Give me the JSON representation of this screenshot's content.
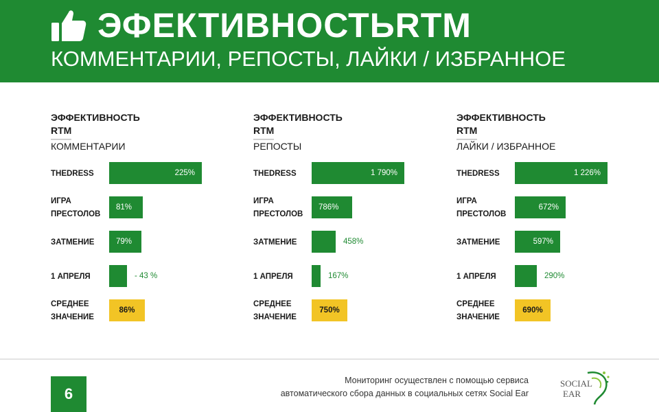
{
  "header": {
    "title": "ЭФЕКТИВНОСТЬRTM",
    "subtitle": "КОММЕНТАРИИ, РЕПОСТЫ, ЛАЙКИ / ИЗБРАННОЕ",
    "icon": "thumbs-up-icon",
    "bg_color": "#1f8a32"
  },
  "chart_data": [
    {
      "type": "bar",
      "orientation": "horizontal",
      "title": "ЭФФЕКТИВНОСТЬ RTM",
      "subtitle": "КОММЕНТАРИИ",
      "categories": [
        "THEDRESS",
        "ИГРА ПРЕСТОЛОВ",
        "ЗАТМЕНИЕ",
        "1 АПРЕЛЯ",
        "СРЕДНЕЕ ЗНАЧЕНИЕ"
      ],
      "values": [
        225,
        81,
        79,
        -43,
        86
      ],
      "labels": [
        "225%",
        "81%",
        "79%",
        "- 43 %",
        "86%"
      ]
    },
    {
      "type": "bar",
      "orientation": "horizontal",
      "title": "ЭФФЕКТИВНОСТЬ RTM",
      "subtitle": "РЕПОСТЫ",
      "categories": [
        "THEDRESS",
        "ИГРА ПРЕСТОЛОВ",
        "ЗАТМЕНИЕ",
        "1 АПРЕЛЯ",
        "СРЕДНЕЕ ЗНАЧЕНИЕ"
      ],
      "values": [
        1790,
        786,
        458,
        167,
        750
      ],
      "labels": [
        "1 790%",
        "786%",
        "458%",
        "167%",
        "750%"
      ]
    },
    {
      "type": "bar",
      "orientation": "horizontal",
      "title": "ЭФФЕКТИВНОСТЬ RTM",
      "subtitle": "ЛАЙКИ / ИЗБРАННОЕ",
      "categories": [
        "THEDRESS",
        "ИГРА ПРЕСТОЛОВ",
        "ЗАТМЕНИЕ",
        "1 АПРЕЛЯ",
        "СРЕДНЕЕ ЗНАЧЕНИЕ"
      ],
      "values": [
        1226,
        672,
        597,
        290,
        690
      ],
      "labels": [
        "1 226%",
        "672%",
        "597%",
        "290%",
        "690%"
      ]
    }
  ],
  "colors": {
    "bar": "#1f8a32",
    "average_bar": "#f2c425"
  },
  "footer": {
    "page_number": "6",
    "text_line1": "Мониторинг осуществлен с помощью сервиса",
    "text_line2": "автоматического сбора данных в социальных сетях Social Ear",
    "logo_line1": "SOCIAL",
    "logo_line2": "EAR"
  }
}
